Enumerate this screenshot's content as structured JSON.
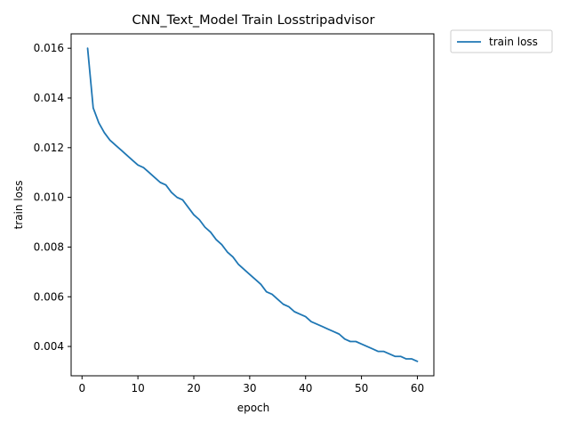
{
  "chart_data": {
    "type": "line",
    "title": "CNN_Text_Model Train Losstripadvisor",
    "xlabel": "epoch",
    "ylabel": "train loss",
    "xlim": [
      -1.95,
      62.95
    ],
    "ylim": [
      0.00282,
      0.01658
    ],
    "xticks": [
      0,
      10,
      20,
      30,
      40,
      50,
      60
    ],
    "yticks": [
      0.004,
      0.006,
      0.008,
      0.01,
      0.012,
      0.014,
      0.016
    ],
    "ytick_labels": [
      "0.004",
      "0.006",
      "0.008",
      "0.010",
      "0.012",
      "0.014",
      "0.016"
    ],
    "grid": false,
    "legend": "outside-upper-right",
    "series": [
      {
        "name": "train loss",
        "color": "#1f77b4",
        "x": [
          1,
          2,
          3,
          4,
          5,
          6,
          7,
          8,
          9,
          10,
          11,
          12,
          13,
          14,
          15,
          16,
          17,
          18,
          19,
          20,
          21,
          22,
          23,
          24,
          25,
          26,
          27,
          28,
          29,
          30,
          31,
          32,
          33,
          34,
          35,
          36,
          37,
          38,
          39,
          40,
          41,
          42,
          43,
          44,
          45,
          46,
          47,
          48,
          49,
          50,
          51,
          52,
          53,
          54,
          55,
          56,
          57,
          58,
          59,
          60
        ],
        "y": [
          0.016,
          0.0136,
          0.013,
          0.0126,
          0.0123,
          0.0121,
          0.0119,
          0.0117,
          0.0115,
          0.0113,
          0.0112,
          0.011,
          0.0108,
          0.0106,
          0.0105,
          0.0102,
          0.01,
          0.0099,
          0.0096,
          0.0093,
          0.0091,
          0.0088,
          0.0086,
          0.0083,
          0.0081,
          0.0078,
          0.0076,
          0.0073,
          0.0071,
          0.0069,
          0.0067,
          0.0065,
          0.0062,
          0.0061,
          0.0059,
          0.0057,
          0.0056,
          0.0054,
          0.0053,
          0.0052,
          0.005,
          0.0049,
          0.0048,
          0.0047,
          0.0046,
          0.0045,
          0.0043,
          0.0042,
          0.0042,
          0.0041,
          0.004,
          0.0039,
          0.0038,
          0.0038,
          0.0037,
          0.0036,
          0.0036,
          0.0035,
          0.0035,
          0.0034
        ]
      }
    ]
  }
}
